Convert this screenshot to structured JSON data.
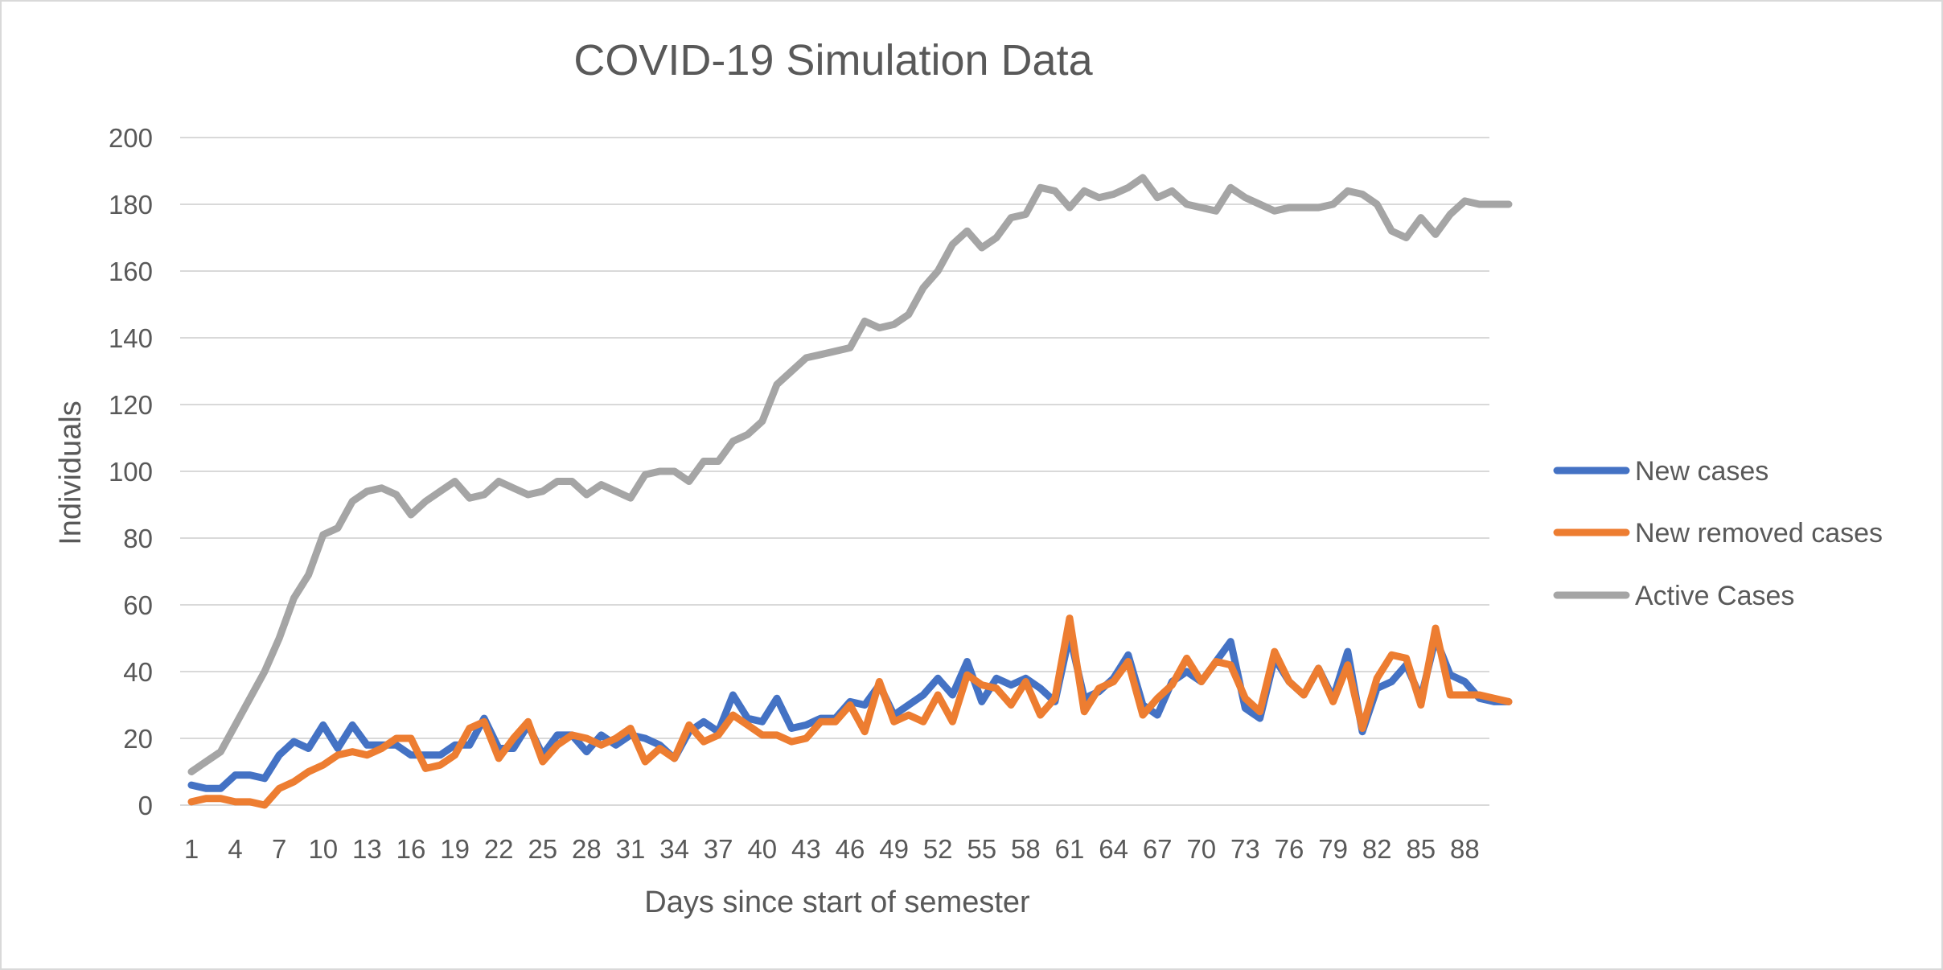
{
  "chart_data": {
    "type": "line",
    "title": "COVID-19 Simulation Data",
    "xlabel": "Days since start of semester",
    "ylabel": "Individuals",
    "ylim": [
      0,
      200
    ],
    "y_ticks": [
      0,
      20,
      40,
      60,
      80,
      100,
      120,
      140,
      160,
      180,
      200
    ],
    "x_tick_labels": [
      "1",
      "4",
      "7",
      "10",
      "13",
      "16",
      "19",
      "22",
      "25",
      "28",
      "31",
      "34",
      "37",
      "40",
      "43",
      "46",
      "49",
      "52",
      "55",
      "58",
      "61",
      "64",
      "67",
      "70",
      "73",
      "76",
      "79",
      "82",
      "85",
      "88"
    ],
    "x_tick_days": [
      1,
      4,
      7,
      10,
      13,
      16,
      19,
      22,
      25,
      28,
      31,
      34,
      37,
      40,
      43,
      46,
      49,
      52,
      55,
      58,
      61,
      64,
      67,
      70,
      73,
      76,
      79,
      82,
      85,
      88
    ],
    "grid": true,
    "legend_position": "right",
    "x": [
      1,
      2,
      3,
      4,
      5,
      6,
      7,
      8,
      9,
      10,
      11,
      12,
      13,
      14,
      15,
      16,
      17,
      18,
      19,
      20,
      21,
      22,
      23,
      24,
      25,
      26,
      27,
      28,
      29,
      30,
      31,
      32,
      33,
      34,
      35,
      36,
      37,
      38,
      39,
      40,
      41,
      42,
      43,
      44,
      45,
      46,
      47,
      48,
      49,
      50,
      51,
      52,
      53,
      54,
      55,
      56,
      57,
      58,
      59,
      60,
      61,
      62,
      63,
      64,
      65,
      66,
      67,
      68,
      69,
      70,
      71,
      72,
      73,
      74,
      75,
      76,
      77,
      78,
      79,
      80,
      81,
      82,
      83,
      84,
      85,
      86,
      87,
      88,
      89,
      90,
      91
    ],
    "series": [
      {
        "name": "New cases",
        "color": "#4472c4",
        "values": [
          6,
          5,
          5,
          9,
          9,
          8,
          15,
          19,
          17,
          24,
          17,
          24,
          18,
          18,
          18,
          15,
          15,
          15,
          18,
          18,
          26,
          17,
          17,
          24,
          15,
          21,
          21,
          16,
          21,
          18,
          21,
          20,
          18,
          14,
          22,
          25,
          22,
          33,
          26,
          25,
          32,
          23,
          24,
          26,
          26,
          31,
          30,
          36,
          27,
          30,
          33,
          38,
          33,
          43,
          31,
          38,
          36,
          38,
          35,
          31,
          51,
          32,
          34,
          38,
          45,
          30,
          27,
          37,
          40,
          37,
          43,
          49,
          29,
          26,
          44,
          37,
          33,
          41,
          32,
          46,
          22,
          35,
          37,
          42,
          32,
          50,
          39,
          37,
          32,
          31,
          31
        ]
      },
      {
        "name": "New removed cases",
        "color": "#ed7d31",
        "values": [
          1,
          2,
          2,
          1,
          1,
          0,
          5,
          7,
          10,
          12,
          15,
          16,
          15,
          17,
          20,
          20,
          11,
          12,
          15,
          23,
          25,
          14,
          20,
          25,
          13,
          18,
          21,
          20,
          18,
          20,
          23,
          13,
          17,
          14,
          24,
          19,
          21,
          27,
          24,
          21,
          21,
          19,
          20,
          25,
          25,
          30,
          22,
          37,
          25,
          27,
          25,
          33,
          25,
          39,
          36,
          35,
          30,
          37,
          27,
          32,
          56,
          28,
          35,
          37,
          43,
          27,
          32,
          36,
          44,
          37,
          43,
          42,
          32,
          28,
          46,
          37,
          33,
          41,
          31,
          42,
          23,
          38,
          45,
          44,
          30,
          53,
          33,
          33,
          33,
          32,
          31
        ]
      },
      {
        "name": "Active Cases",
        "color": "#a5a5a5",
        "values": [
          10,
          13,
          16,
          24,
          32,
          40,
          50,
          62,
          69,
          81,
          83,
          91,
          94,
          95,
          93,
          87,
          91,
          94,
          97,
          92,
          93,
          97,
          95,
          93,
          94,
          97,
          97,
          93,
          96,
          94,
          92,
          99,
          100,
          100,
          97,
          103,
          103,
          109,
          111,
          115,
          126,
          130,
          134,
          135,
          136,
          137,
          145,
          143,
          144,
          147,
          155,
          160,
          168,
          172,
          167,
          170,
          176,
          177,
          185,
          184,
          179,
          184,
          182,
          183,
          185,
          188,
          182,
          184,
          180,
          179,
          178,
          185,
          182,
          180,
          178,
          179,
          179,
          179,
          180,
          184,
          183,
          180,
          172,
          170,
          176,
          171,
          177,
          181,
          180,
          180,
          180
        ]
      }
    ]
  }
}
